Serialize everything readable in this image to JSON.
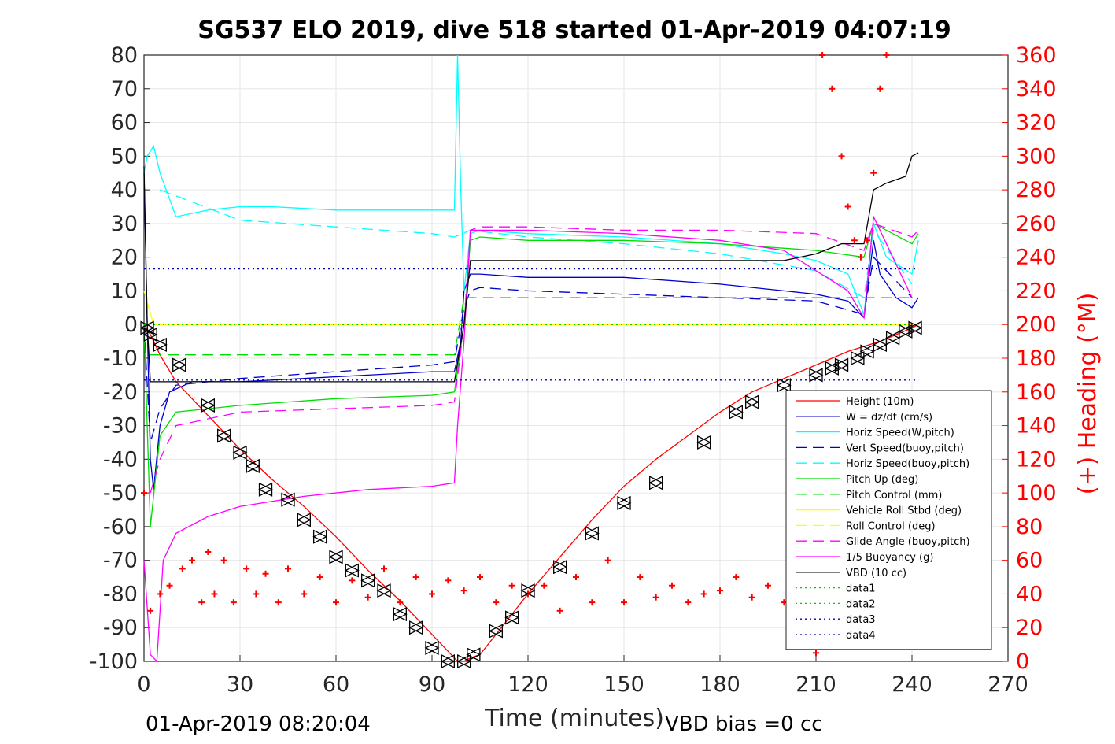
{
  "chart_data": {
    "type": "line",
    "title": "SG537 ELO 2019, dive 518 started 01-Apr-2019 04:07:19",
    "xlabel": "Time (minutes)",
    "ylabel_right": "(+) Heading (°M)",
    "xlim": [
      0,
      270
    ],
    "ylim": [
      -100,
      80
    ],
    "ylim_right": [
      0,
      360
    ],
    "x_ticks": [
      "0",
      "30",
      "60",
      "90",
      "120",
      "150",
      "180",
      "210",
      "240",
      "270"
    ],
    "y_ticks": [
      "80",
      "70",
      "60",
      "50",
      "40",
      "30",
      "20",
      "10",
      "0",
      "-10",
      "-20",
      "-30",
      "-40",
      "-50",
      "-60",
      "-70",
      "-80",
      "-90",
      "-100"
    ],
    "y_ticks_right": [
      "360",
      "340",
      "320",
      "300",
      "280",
      "260",
      "240",
      "220",
      "200",
      "180",
      "160",
      "140",
      "120",
      "100",
      "80",
      "60",
      "40",
      "20",
      "0"
    ],
    "grid": true,
    "legend_position": "lower-right",
    "footer_left": "01-Apr-2019 08:20:04",
    "footer_right": "VBD bias =0 cc",
    "series": [
      {
        "name": "Height (10m)",
        "color": "#ff0000",
        "style": "solid",
        "x": [
          0,
          2,
          5,
          10,
          20,
          30,
          40,
          50,
          60,
          70,
          80,
          90,
          95,
          98,
          100,
          102,
          105,
          110,
          120,
          130,
          140,
          150,
          160,
          170,
          180,
          190,
          200,
          210,
          220,
          230,
          235,
          240,
          242
        ],
        "y": [
          0,
          -3,
          -9,
          -17,
          -27,
          -37,
          -46,
          -54,
          -63,
          -73,
          -82,
          -92,
          -97,
          -100,
          -100,
          -99,
          -98,
          -92,
          -80,
          -69,
          -58,
          -48,
          -40,
          -33,
          -26,
          -20,
          -16,
          -12,
          -8,
          -5,
          -3,
          -1,
          0
        ]
      },
      {
        "name": "W = dz/dt (cm/s)",
        "color": "#0000cc",
        "style": "solid",
        "x": [
          0,
          1,
          2,
          3,
          5,
          8,
          15,
          30,
          50,
          70,
          90,
          97,
          99,
          100,
          102,
          105,
          120,
          150,
          180,
          200,
          210,
          220,
          225,
          228,
          230,
          235,
          240,
          242
        ],
        "y": [
          45,
          0,
          -40,
          -49,
          -30,
          -20,
          -17,
          -17,
          -16,
          -15,
          -14,
          -14,
          -5,
          10,
          15,
          15,
          14,
          14,
          12,
          10,
          9,
          7,
          2,
          25,
          15,
          8,
          5,
          8
        ]
      },
      {
        "name": "Horiz Speed(W,pitch)",
        "color": "#00ffff",
        "style": "solid",
        "x": [
          0,
          1,
          3,
          5,
          10,
          20,
          30,
          40,
          60,
          80,
          97,
          98,
          99,
          100,
          102,
          105,
          120,
          150,
          180,
          200,
          210,
          220,
          225,
          228,
          232,
          240,
          242
        ],
        "y": [
          45,
          50,
          53,
          45,
          32,
          34,
          35,
          35,
          34,
          34,
          34,
          80,
          40,
          10,
          27,
          28,
          27,
          26,
          24,
          21,
          19,
          15,
          3,
          30,
          20,
          15,
          25
        ]
      },
      {
        "name": "Vert Speed(buoy,pitch)",
        "color": "#0000cc",
        "style": "dashed",
        "x": [
          0,
          2,
          5,
          10,
          30,
          60,
          90,
          97,
          100,
          102,
          105,
          120,
          150,
          180,
          210,
          225,
          228,
          240
        ],
        "y": [
          0,
          -35,
          -25,
          -18,
          -16,
          -14,
          -12,
          -11,
          5,
          10,
          11,
          10,
          9,
          8,
          7,
          3,
          20,
          8
        ]
      },
      {
        "name": "Horiz Speed(buoy,pitch)",
        "color": "#00ffff",
        "style": "dashed",
        "x": [
          5,
          30,
          60,
          90,
          97,
          102,
          120,
          150,
          180,
          210,
          225,
          228,
          240
        ],
        "y": [
          40,
          31,
          29,
          27,
          26,
          28,
          26,
          24,
          21,
          16,
          8,
          28,
          12
        ]
      },
      {
        "name": "Pitch Up (deg)",
        "color": "#00dd00",
        "style": "solid",
        "x": [
          0,
          2,
          5,
          10,
          30,
          60,
          90,
          97,
          100,
          102,
          105,
          120,
          150,
          180,
          210,
          225,
          228,
          240,
          242
        ],
        "y": [
          0,
          -60,
          -33,
          -26,
          -24,
          -22,
          -21,
          -20,
          0,
          25,
          26,
          25,
          25,
          24,
          22,
          20,
          30,
          24,
          27
        ]
      },
      {
        "name": "Pitch Control (mm)",
        "color": "#00dd00",
        "style": "dashed",
        "x": [
          2,
          10,
          50,
          97,
          100,
          105,
          150,
          210,
          225,
          230,
          240
        ],
        "y": [
          -9,
          -9,
          -9,
          -9,
          8,
          8,
          8,
          8,
          8,
          8,
          8
        ]
      },
      {
        "name": "Vehicle Roll Stbd (deg)",
        "color": "#ffff00",
        "style": "solid",
        "x": [
          0,
          3,
          10,
          50,
          97,
          100,
          150,
          200,
          210,
          220,
          225,
          230,
          240,
          242
        ],
        "y": [
          10,
          0,
          0,
          0,
          0,
          0,
          0,
          0,
          0,
          0,
          0,
          0,
          0,
          0
        ]
      },
      {
        "name": "Roll Control (deg)",
        "color": "#ffff00",
        "style": "dashed",
        "x": [
          3,
          10,
          50,
          97,
          100,
          150,
          210,
          240
        ],
        "y": [
          0,
          0,
          0,
          0,
          0,
          0,
          0,
          0
        ]
      },
      {
        "name": "Glide Angle (buoy,pitch)",
        "color": "#ff00ff",
        "style": "dashed",
        "x": [
          2,
          5,
          10,
          30,
          60,
          90,
          97,
          100,
          102,
          105,
          120,
          150,
          180,
          210,
          225,
          228,
          240,
          242
        ],
        "y": [
          -50,
          -40,
          -30,
          -26,
          -25,
          -24,
          -23,
          0,
          28,
          29,
          29,
          28,
          28,
          27,
          22,
          30,
          26,
          28
        ]
      },
      {
        "name": "1/5 Buoyancy (g)",
        "color": "#ff00ff",
        "style": "solid",
        "x": [
          0,
          2,
          4,
          6,
          10,
          20,
          30,
          50,
          70,
          90,
          97,
          98,
          100,
          102,
          105,
          120,
          150,
          180,
          200,
          210,
          220,
          225,
          228,
          240
        ],
        "y": [
          -70,
          -98,
          -100,
          -70,
          -62,
          -57,
          -54,
          -51,
          -49,
          -48,
          -47,
          -30,
          -5,
          28,
          28,
          28,
          27,
          25,
          22,
          16,
          10,
          2,
          32,
          8
        ]
      },
      {
        "name": "VBD (10 cc)",
        "color": "#000000",
        "style": "solid",
        "x": [
          0,
          1,
          2,
          5,
          97,
          100,
          102,
          105,
          200,
          210,
          218,
          225,
          228,
          232,
          238,
          240,
          242
        ],
        "y": [
          47,
          0,
          -17,
          -17,
          -17,
          0,
          19,
          19,
          19,
          21,
          24,
          24,
          40,
          42,
          44,
          50,
          51
        ]
      },
      {
        "name": "data1",
        "color": "#00cc00",
        "style": "dotted",
        "x": [
          0,
          242
        ],
        "y": [
          0,
          0
        ]
      },
      {
        "name": "data2",
        "color": "#00cc00",
        "style": "dotted",
        "x": [
          0,
          242
        ],
        "y": [
          0,
          0
        ]
      },
      {
        "name": "data3",
        "color": "#0000aa",
        "style": "dotted",
        "x": [
          0,
          242
        ],
        "y": [
          16.5,
          16.5
        ]
      },
      {
        "name": "data4",
        "color": "#0000aa",
        "style": "dotted",
        "x": [
          0,
          242
        ],
        "y": [
          -16.5,
          -16.5
        ]
      }
    ],
    "heading": {
      "name": "(+) Heading (°M)",
      "color": "#ff0000",
      "marker": "+",
      "axis": "right",
      "x": [
        0,
        2,
        5,
        8,
        12,
        15,
        18,
        20,
        22,
        25,
        28,
        32,
        35,
        38,
        42,
        45,
        50,
        55,
        60,
        65,
        70,
        75,
        80,
        85,
        90,
        95,
        100,
        105,
        110,
        115,
        120,
        125,
        130,
        135,
        140,
        145,
        150,
        155,
        160,
        165,
        170,
        175,
        180,
        185,
        190,
        195,
        200,
        205,
        208,
        210,
        212,
        215,
        218,
        220,
        222,
        224,
        226,
        228,
        230,
        232
      ],
      "y": [
        100,
        30,
        40,
        45,
        55,
        60,
        35,
        65,
        40,
        60,
        35,
        55,
        40,
        52,
        35,
        55,
        40,
        50,
        35,
        48,
        38,
        55,
        35,
        50,
        40,
        48,
        42,
        50,
        35,
        45,
        40,
        45,
        30,
        50,
        35,
        60,
        35,
        50,
        38,
        45,
        35,
        40,
        42,
        50,
        38,
        45,
        35,
        30,
        10,
        5,
        360,
        340,
        300,
        270,
        250,
        240,
        250,
        290,
        340,
        360
      ]
    },
    "marker_points": {
      "name": "triangles",
      "x": [
        1,
        2,
        5,
        11,
        20,
        25,
        30,
        34,
        38,
        45,
        50,
        55,
        60,
        65,
        70,
        75,
        80,
        85,
        90,
        95,
        100,
        103,
        110,
        115,
        120,
        130,
        140,
        150,
        160,
        175,
        185,
        190,
        200,
        210,
        215,
        218,
        223,
        226,
        230,
        234,
        238,
        241
      ],
      "y": [
        -1,
        -3,
        -6,
        -12,
        -24,
        -33,
        -38,
        -42,
        -49,
        -52,
        -58,
        -63,
        -69,
        -73,
        -76,
        -79,
        -86,
        -90,
        -96,
        -100,
        -100,
        -98,
        -91,
        -87,
        -79,
        -72,
        -62,
        -53,
        -47,
        -35,
        -26,
        -23,
        -18,
        -15,
        -13,
        -12,
        -10,
        -8,
        -6,
        -4,
        -2,
        -1
      ]
    }
  }
}
